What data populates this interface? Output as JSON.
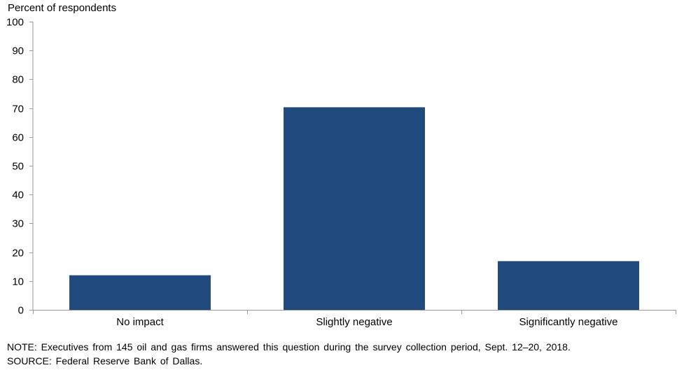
{
  "chart_data": {
    "type": "bar",
    "categories": [
      "No impact",
      "Slightly negative",
      "Significantly negative"
    ],
    "values": [
      12,
      70.3,
      16.9
    ],
    "ylabel": "Percent of respondents",
    "xlabel": "",
    "ylim": [
      0,
      100
    ],
    "yticks": [
      0,
      10,
      20,
      30,
      40,
      50,
      60,
      70,
      80,
      90,
      100
    ],
    "grid": false,
    "legend": "none",
    "bar_color": "#204A7E",
    "axis_color": "#999999"
  },
  "notes": {
    "note": "NOTE: Executives from 145 oil and gas firms answered this question during the survey collection period, Sept. 12–20, 2018.",
    "source": "SOURCE: Federal Reserve Bank of Dallas."
  }
}
